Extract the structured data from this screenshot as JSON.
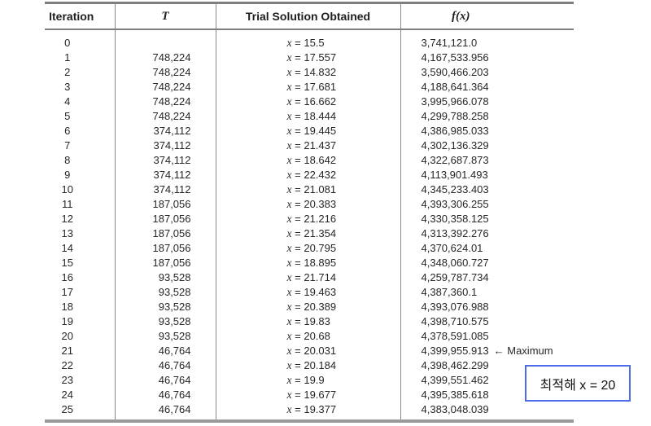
{
  "table": {
    "columns": [
      "Iteration",
      "T",
      "Trial Solution Obtained",
      "f(x)"
    ],
    "var_label": "x",
    "equals_sign": "=",
    "rows": [
      {
        "it": "0",
        "t": "",
        "x": "15.5",
        "fx": "3,741,121.0"
      },
      {
        "it": "1",
        "t": "748,224",
        "x": "17.557",
        "fx": "4,167,533.956"
      },
      {
        "it": "2",
        "t": "748,224",
        "x": "14.832",
        "fx": "3,590,466.203"
      },
      {
        "it": "3",
        "t": "748,224",
        "x": "17.681",
        "fx": "4,188,641.364"
      },
      {
        "it": "4",
        "t": "748,224",
        "x": "16.662",
        "fx": "3,995,966.078"
      },
      {
        "it": "5",
        "t": "748,224",
        "x": "18.444",
        "fx": "4,299,788.258"
      },
      {
        "it": "6",
        "t": "374,112",
        "x": "19.445",
        "fx": "4,386,985.033"
      },
      {
        "it": "7",
        "t": "374,112",
        "x": "21.437",
        "fx": "4,302,136.329"
      },
      {
        "it": "8",
        "t": "374,112",
        "x": "18.642",
        "fx": "4,322,687.873"
      },
      {
        "it": "9",
        "t": "374,112",
        "x": "22.432",
        "fx": "4,113,901.493"
      },
      {
        "it": "10",
        "t": "374,112",
        "x": "21.081",
        "fx": "4,345,233.403"
      },
      {
        "it": "11",
        "t": "187,056",
        "x": "20.383",
        "fx": "4,393,306.255"
      },
      {
        "it": "12",
        "t": "187,056",
        "x": "21.216",
        "fx": "4,330,358.125"
      },
      {
        "it": "13",
        "t": "187,056",
        "x": "21.354",
        "fx": "4,313,392.276"
      },
      {
        "it": "14",
        "t": "187,056",
        "x": "20.795",
        "fx": "4,370,624.01"
      },
      {
        "it": "15",
        "t": "187,056",
        "x": "18.895",
        "fx": "4,348,060.727"
      },
      {
        "it": "16",
        "t": "93,528",
        "x": "21.714",
        "fx": "4,259,787.734"
      },
      {
        "it": "17",
        "t": "93,528",
        "x": "19.463",
        "fx": "4,387,360.1"
      },
      {
        "it": "18",
        "t": "93,528",
        "x": "20.389",
        "fx": "4,393,076.988"
      },
      {
        "it": "19",
        "t": "93,528",
        "x": "19.83",
        "fx": "4,398,710.575"
      },
      {
        "it": "20",
        "t": "93,528",
        "x": "20.68",
        "fx": "4,378,591.085"
      },
      {
        "it": "21",
        "t": "46,764",
        "x": "20.031",
        "fx": "4,399,955.913",
        "note": "← Maximum"
      },
      {
        "it": "22",
        "t": "46,764",
        "x": "20.184",
        "fx": "4,398,462.299"
      },
      {
        "it": "23",
        "t": "46,764",
        "x": "19.9",
        "fx": "4,399,551.462"
      },
      {
        "it": "24",
        "t": "46,764",
        "x": "19.677",
        "fx": "4,395,385.618"
      },
      {
        "it": "25",
        "t": "46,764",
        "x": "19.377",
        "fx": "4,383,048.039"
      }
    ]
  },
  "annotation": {
    "label": "최적해 x = 20",
    "border_color": "#4f6bed"
  }
}
